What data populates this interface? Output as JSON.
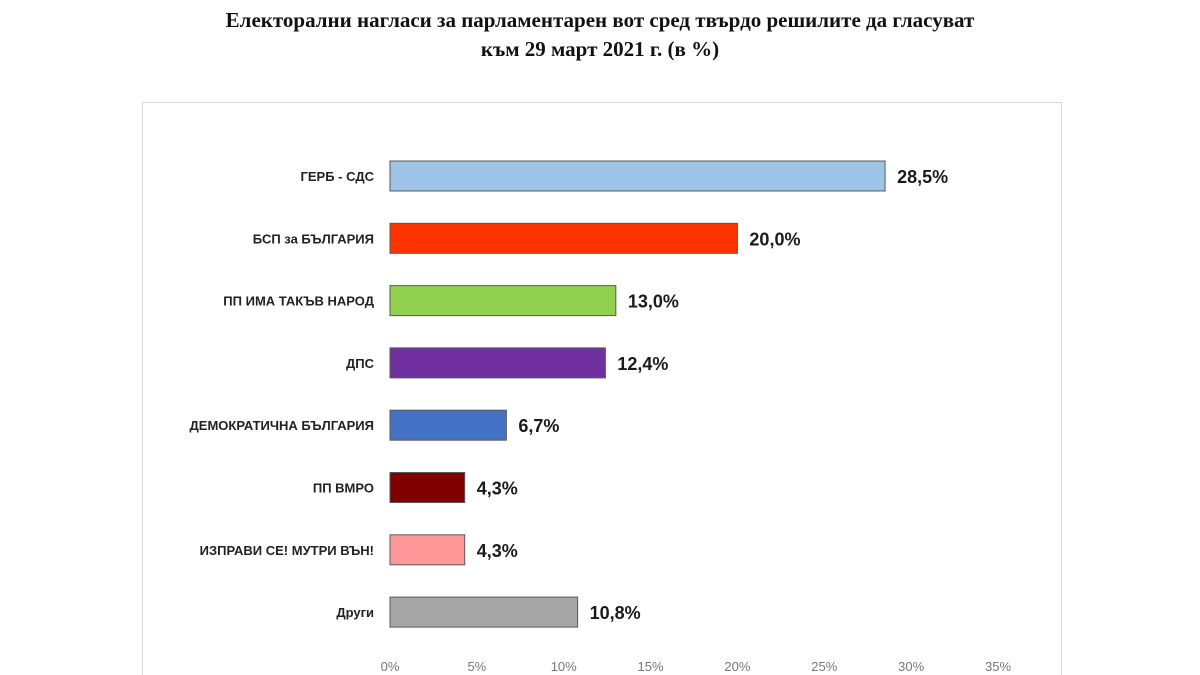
{
  "chart_data": {
    "type": "bar",
    "orientation": "horizontal",
    "title_lines": [
      "Електорални нагласи за парламентарен вот сред твърдо решилите да гласуват",
      "към 29 март 2021 г. (в %)"
    ],
    "categories": [
      "ГЕРБ - СДС",
      "БСП за БЪЛГАРИЯ",
      "ПП ИМА ТАКЪВ НАРОД",
      "ДПС",
      "ДЕМОКРАТИЧНА БЪЛГАРИЯ",
      "ПП ВМРО",
      "ИЗПРАВИ СЕ! МУТРИ ВЪН!",
      "Други"
    ],
    "values": [
      28.5,
      20.0,
      13.0,
      12.4,
      6.7,
      4.3,
      4.3,
      10.8
    ],
    "value_labels": [
      "28,5%",
      "20,0%",
      "13,0%",
      "12,4%",
      "6,7%",
      "4,3%",
      "4,3%",
      "10,8%"
    ],
    "colors": [
      "#9dc3e6",
      "#ff3300",
      "#92d050",
      "#7030a0",
      "#4472c4",
      "#800000",
      "#ff9999",
      "#a6a6a6"
    ],
    "xlim": [
      0,
      35
    ],
    "x_ticks": [
      0,
      5,
      10,
      15,
      20,
      25,
      30,
      35
    ],
    "x_tick_labels": [
      "0%",
      "5%",
      "10%",
      "15%",
      "20%",
      "25%",
      "30%",
      "35%"
    ],
    "grid": false
  }
}
